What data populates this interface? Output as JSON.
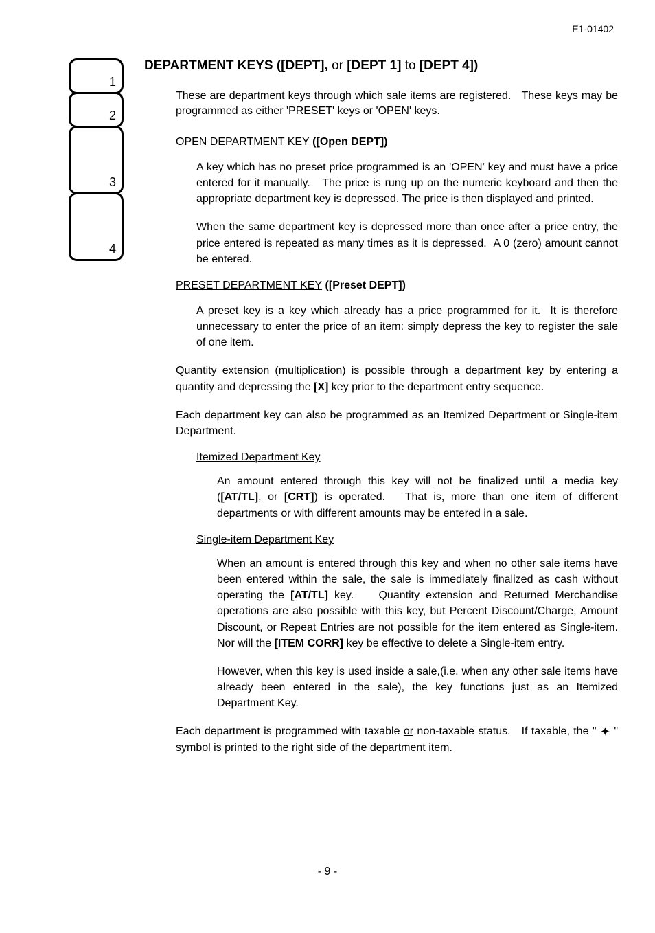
{
  "header": {
    "doc_id": "E1-01402"
  },
  "keypad": {
    "keys": [
      "1",
      "2",
      "3",
      "4"
    ]
  },
  "title": {
    "main": "DEPARTMENT KEYS",
    "suffix": " ([DEPT], ",
    "or": "or ",
    "range": "[DEPT 1] ",
    "to": "to ",
    "end": "[DEPT 4])"
  },
  "intro": "These are department keys through which sale items are registered.   These keys may be programmed as either 'PRESET' keys or 'OPEN' keys.",
  "open": {
    "head_u": "OPEN DEPARTMENT KEY",
    "head_b": " ([Open DEPT])",
    "p1": "A key which has no preset price programmed is an 'OPEN' key and must have a price entered for it manually.   The price is rung up on the numeric keyboard and then the appropriate department key is depressed. The price is then displayed and printed.",
    "p2": "When the same department key is depressed more than once after a price entry, the price entered is repeated as many times as it is depressed.  A 0 (zero) amount cannot be entered."
  },
  "preset": {
    "head_u": "PRESET DEPARTMENT KEY",
    "head_b": " ([Preset DEPT])",
    "p1": "A preset key is a key which already has a price programmed for it.  It is therefore unnecessary to enter the price of an item: simply depress the key to register the sale of one item."
  },
  "qty": {
    "pre": "Quantity extension (multiplication) is possible through a department key by entering a quantity and depressing the ",
    "key": "[X]",
    "post": " key prior to the department entry sequence."
  },
  "prog_types": "Each department key can also be programmed as an Itemized Department or Single-item Department.",
  "itemized": {
    "head": "Itemized Department Key",
    "pre": "An amount entered through this key will not be finalized until a media key (",
    "k1": "[AT/TL]",
    "mid": ", or ",
    "k2": "[CRT]",
    "post": ") is operated.   That is, more than one item of different departments or with different amounts may be entered in a sale."
  },
  "single": {
    "head": "Single-item Department Key",
    "p1_pre": "When an amount is entered through this key and when no other sale items have been entered within the sale, the sale is immediately finalized as cash without operating the ",
    "p1_k1": "[AT/TL]",
    "p1_mid": " key.    Quantity extension and Returned Merchandise operations are also possible with this key, but Percent Discount/Charge, Amount Discount, or Repeat Entries are not possible for the item entered as Single-item. Nor will the ",
    "p1_k2": "[ITEM CORR]",
    "p1_post": " key be effective to delete a Single-item entry.",
    "p2": "However, when this key is used inside a sale,(i.e. when any other sale items have already been entered in the sale), the key functions just as an Itemized Department Key."
  },
  "tax": {
    "pre": "Each department is programmed with taxable ",
    "or": "or",
    "mid": " non-taxable status.   If taxable, the \" ",
    "sym": "✦",
    "post": " \" symbol is printed to the right side of the department item."
  },
  "page_num": "- 9 -"
}
